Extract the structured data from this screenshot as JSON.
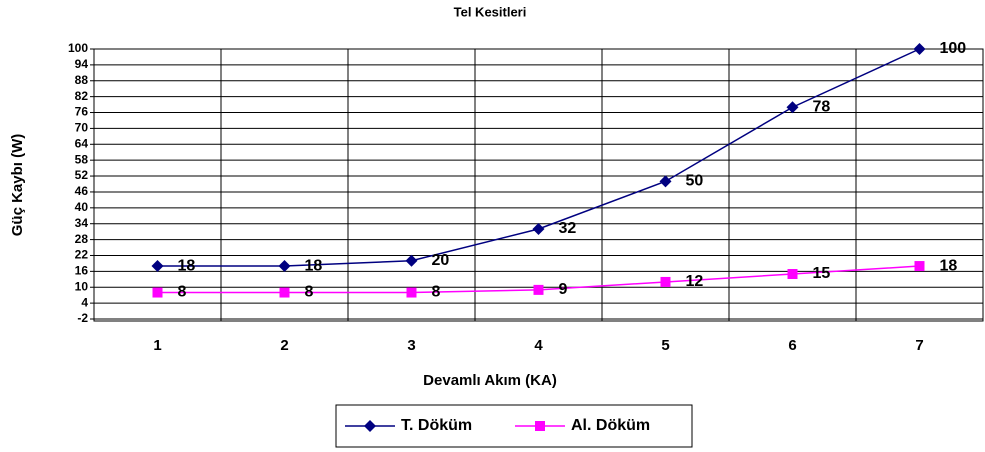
{
  "chart_data": {
    "type": "line",
    "title": "Tel Kesitleri",
    "xlabel": "Devamlı Akım (KA)",
    "ylabel": "Güç Kaybı (W)",
    "categories": [
      "1",
      "2",
      "3",
      "4",
      "5",
      "6",
      "7"
    ],
    "series": [
      {
        "name": "T. Döküm",
        "color": "#000080",
        "marker": "diamond",
        "values": [
          18,
          18,
          20,
          32,
          50,
          78,
          100
        ]
      },
      {
        "name": "Al. Döküm",
        "color": "#ff00ff",
        "marker": "square",
        "values": [
          8,
          8,
          8,
          9,
          12,
          15,
          18
        ]
      }
    ],
    "ylim": [
      -2,
      100
    ],
    "yticks": [
      -2,
      4,
      10,
      16,
      22,
      28,
      34,
      40,
      46,
      52,
      58,
      64,
      70,
      76,
      82,
      88,
      94,
      100
    ],
    "grid": true,
    "legend": "bottom"
  }
}
